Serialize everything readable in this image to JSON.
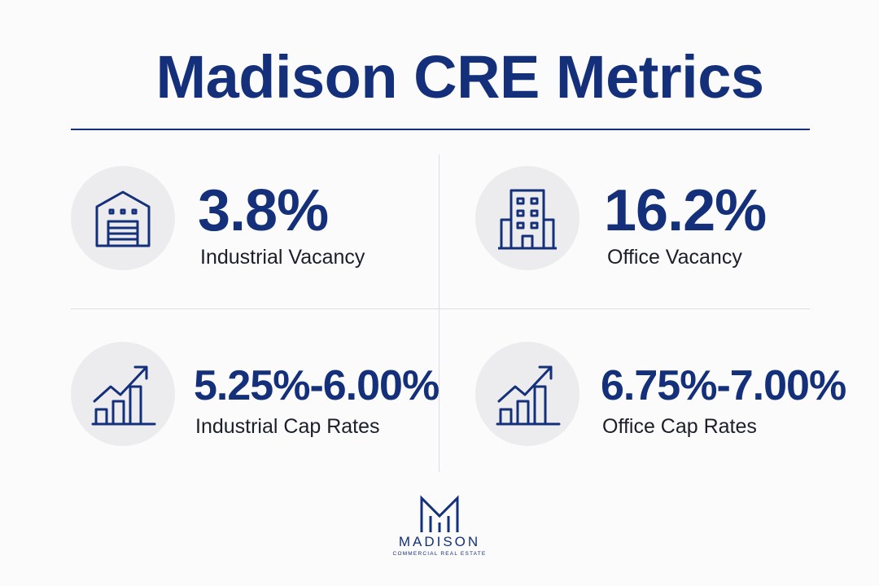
{
  "title": "Madison CRE Metrics",
  "metrics": [
    {
      "icon": "warehouse-icon",
      "value": "3.8%",
      "label": "Industrial Vacancy"
    },
    {
      "icon": "office-building-icon",
      "value": "16.2%",
      "label": "Office Vacancy"
    },
    {
      "icon": "growth-chart-icon",
      "value": "5.25%-6.00%",
      "label": "Industrial Cap Rates"
    },
    {
      "icon": "growth-chart-icon",
      "value": "6.75%-7.00%",
      "label": "Office Cap Rates"
    }
  ],
  "logo": {
    "name": "MADISON",
    "subtitle": "COMMERCIAL REAL ESTATE"
  },
  "colors": {
    "primary": "#14307a",
    "icon_background": "#ececee",
    "label_text": "#1c1f2a",
    "page_background": "#fbfbfc"
  }
}
